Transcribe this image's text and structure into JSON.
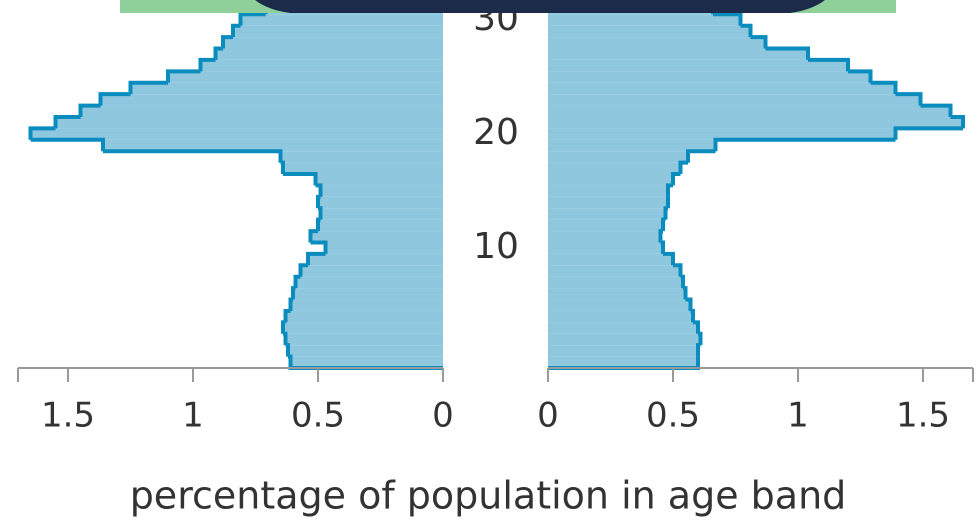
{
  "chart_data": {
    "type": "pyramid",
    "x_label": "percentage of population in age band",
    "xlim": [
      0,
      1.7
    ],
    "xticks": [
      0,
      0.5,
      1,
      1.5
    ],
    "ylim": [
      -0.5,
      30.7
    ],
    "yticks": [
      10,
      20,
      30
    ],
    "x": [
      0,
      1,
      2,
      3,
      4,
      5,
      6,
      7,
      8,
      9,
      10,
      11,
      12,
      13,
      14,
      15,
      16,
      17,
      18,
      19,
      20,
      21,
      22,
      23,
      24,
      25,
      26,
      27,
      28,
      29,
      30,
      31
    ],
    "series": [
      {
        "side": "left",
        "color": "#8ec7de",
        "edge_color": "#0b8cbf",
        "values": [
          0.61,
          0.62,
          0.63,
          0.64,
          0.63,
          0.61,
          0.6,
          0.59,
          0.57,
          0.54,
          0.47,
          0.53,
          0.5,
          0.49,
          0.5,
          0.49,
          0.51,
          0.64,
          0.65,
          1.36,
          1.65,
          1.55,
          1.45,
          1.37,
          1.25,
          1.1,
          0.97,
          0.91,
          0.88,
          0.84,
          0.81,
          0.71
        ]
      },
      {
        "side": "right",
        "color": "#8ec7de",
        "edge_color": "#0b8cbf",
        "values": [
          0.6,
          0.6,
          0.61,
          0.6,
          0.58,
          0.57,
          0.55,
          0.54,
          0.53,
          0.5,
          0.46,
          0.45,
          0.46,
          0.47,
          0.48,
          0.48,
          0.5,
          0.53,
          0.56,
          0.67,
          1.39,
          1.66,
          1.61,
          1.49,
          1.39,
          1.29,
          1.2,
          1.04,
          0.87,
          0.81,
          0.77,
          0.66
        ]
      }
    ]
  }
}
